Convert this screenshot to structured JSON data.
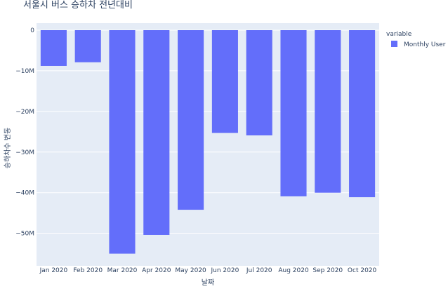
{
  "chart_data": {
    "type": "bar",
    "title": "서울시 버스 승하차 전년대비",
    "xlabel": "날짜",
    "ylabel": "승하차수 변동",
    "categories": [
      "Jan 2020",
      "Feb 2020",
      "Mar 2020",
      "Apr 2020",
      "May 2020",
      "Jun 2020",
      "Jul 2020",
      "Aug 2020",
      "Sep 2020",
      "Oct 2020"
    ],
    "series": [
      {
        "name": "Monthly User",
        "color": "#636efa",
        "values": [
          -8800000,
          -7900000,
          -55000000,
          -50400000,
          -44200000,
          -25300000,
          -25900000,
          -40900000,
          -40000000,
          -41100000
        ]
      }
    ],
    "ylim": [
      -58000000,
      0
    ],
    "yticks": [
      {
        "value": 0,
        "label": "0"
      },
      {
        "value": -10000000,
        "label": "−10M"
      },
      {
        "value": -20000000,
        "label": "−20M"
      },
      {
        "value": -30000000,
        "label": "−30M"
      },
      {
        "value": -40000000,
        "label": "−40M"
      },
      {
        "value": -50000000,
        "label": "−50M"
      }
    ],
    "legend": {
      "title": "variable",
      "position": "top-right"
    },
    "plot_bg": "#e5ecf6",
    "grid": true
  }
}
